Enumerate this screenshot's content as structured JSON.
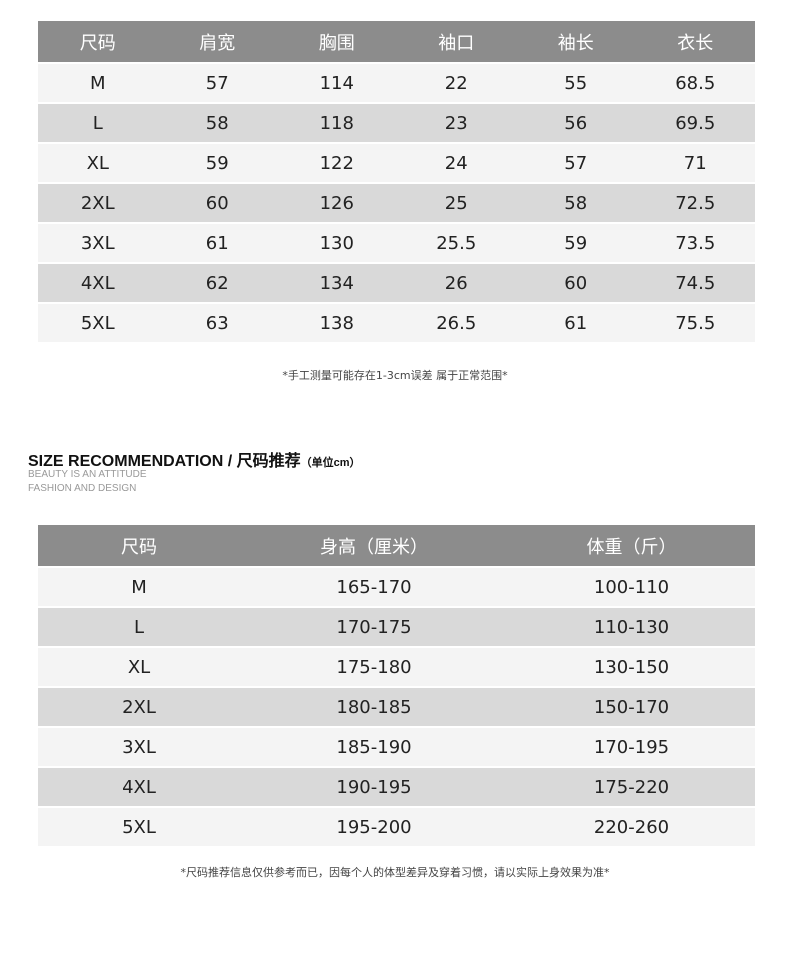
{
  "measure_table": {
    "headers": [
      "尺码",
      "肩宽",
      "胸围",
      "袖口",
      "袖长",
      "衣长"
    ],
    "rows": [
      [
        "M",
        "57",
        "114",
        "22",
        "55",
        "68.5"
      ],
      [
        "L",
        "58",
        "118",
        "23",
        "56",
        "69.5"
      ],
      [
        "XL",
        "59",
        "122",
        "24",
        "57",
        "71"
      ],
      [
        "2XL",
        "60",
        "126",
        "25",
        "58",
        "72.5"
      ],
      [
        "3XL",
        "61",
        "130",
        "25.5",
        "59",
        "73.5"
      ],
      [
        "4XL",
        "62",
        "134",
        "26",
        "60",
        "74.5"
      ],
      [
        "5XL",
        "63",
        "138",
        "26.5",
        "61",
        "75.5"
      ]
    ],
    "note": "*手工测量可能存在1-3cm误差 属于正常范围*"
  },
  "recommendation": {
    "title": "SIZE RECOMMENDATION / 尺码推荐",
    "unit": "（单位cm）",
    "subtitle1": "BEAUTY IS AN ATTITUDE",
    "subtitle2": "FASHION AND DESIGN",
    "headers": [
      "尺码",
      "身高（厘米）",
      "体重（斤）"
    ],
    "rows": [
      [
        "M",
        "165-170",
        "100-110"
      ],
      [
        "L",
        "170-175",
        "110-130"
      ],
      [
        "XL",
        "175-180",
        "130-150"
      ],
      [
        "2XL",
        "180-185",
        "150-170"
      ],
      [
        "3XL",
        "185-190",
        "170-195"
      ],
      [
        "4XL",
        "190-195",
        "175-220"
      ],
      [
        "5XL",
        "195-200",
        "220-260"
      ]
    ],
    "note": "*尺码推荐信息仅供参考而已，因每个人的体型差异及穿着习惯，请以实际上身效果为准*"
  },
  "colors": {
    "header": "#8c8c8c",
    "row_light": "#f4f4f4",
    "row_dark": "#d9d9d9"
  }
}
